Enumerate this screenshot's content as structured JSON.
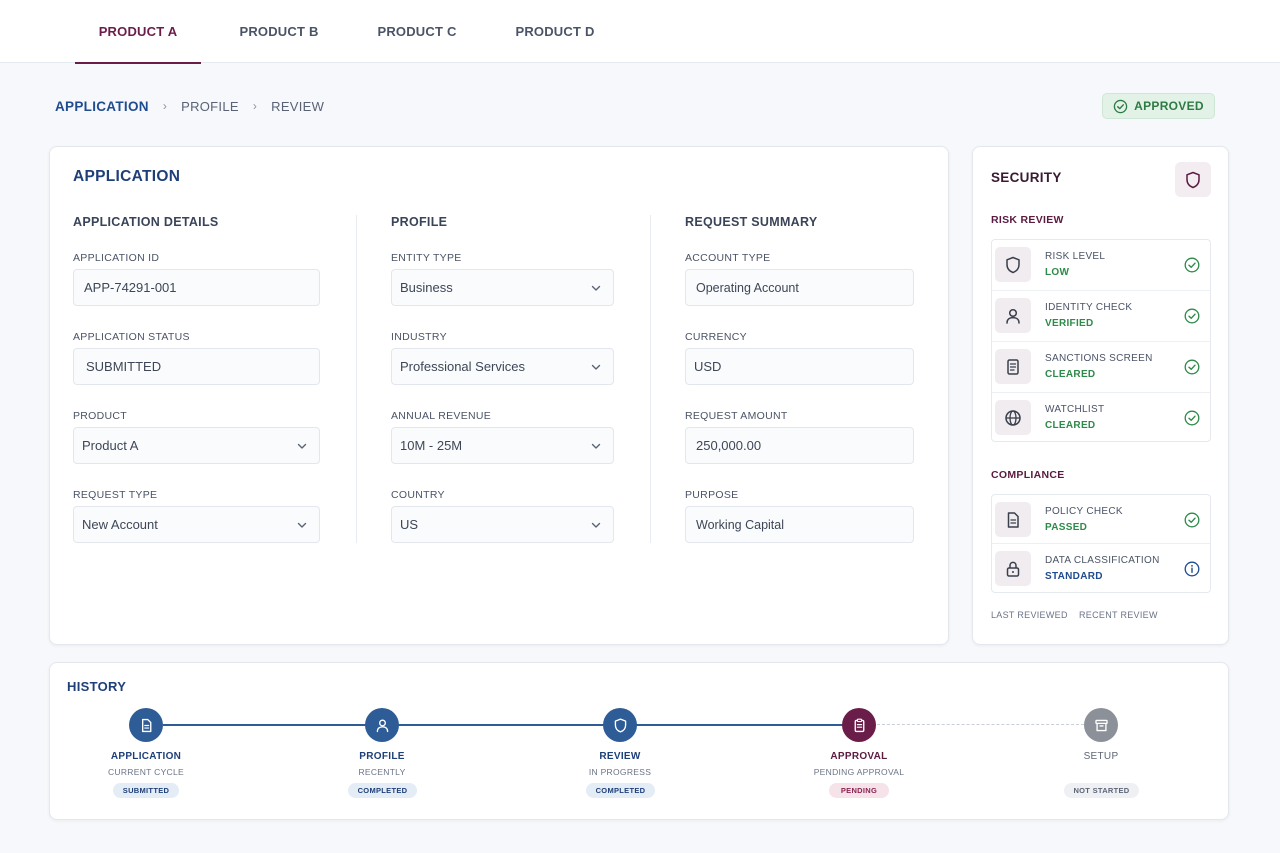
{
  "tabs": [
    {
      "label": "PRODUCT A",
      "active": true
    },
    {
      "label": "PRODUCT B",
      "active": false
    },
    {
      "label": "PRODUCT C",
      "active": false
    },
    {
      "label": "PRODUCT D",
      "active": false
    }
  ],
  "breadcrumb": [
    "APPLICATION",
    "PROFILE",
    "REVIEW"
  ],
  "status_badge": {
    "label": "APPROVED",
    "icon": "check-circle-icon",
    "color": "#2e7a44"
  },
  "application": {
    "title": "APPLICATION",
    "details": {
      "title": "APPLICATION DETAILS",
      "application_id": {
        "label": "APPLICATION ID",
        "value": "APP-74291-001"
      },
      "application_status": {
        "label": "APPLICATION STATUS",
        "value": "SUBMITTED"
      },
      "product": {
        "label": "PRODUCT",
        "value": "Product A"
      },
      "request_type": {
        "label": "REQUEST TYPE",
        "value": "New Account"
      }
    },
    "profile": {
      "title": "PROFILE",
      "entity_type": {
        "label": "ENTITY TYPE",
        "value": "Business"
      },
      "industry": {
        "label": "INDUSTRY",
        "value": "Professional Services"
      },
      "annual_revenue": {
        "label": "ANNUAL REVENUE",
        "value": "10M - 25M"
      },
      "country": {
        "label": "COUNTRY",
        "value": "US"
      }
    },
    "summary": {
      "title": "REQUEST SUMMARY",
      "account_type": {
        "label": "ACCOUNT TYPE",
        "value": "Operating Account"
      },
      "currency": {
        "label": "CURRENCY",
        "value": "USD"
      },
      "request_amount": {
        "label": "REQUEST AMOUNT",
        "value": "250,000.00"
      },
      "purpose": {
        "label": "PURPOSE",
        "value": "Working Capital"
      }
    }
  },
  "security": {
    "title": "SECURITY",
    "icon": "shield-icon",
    "risk_review": {
      "title": "RISK REVIEW",
      "items": [
        {
          "name": "RISK LEVEL",
          "value": "LOW",
          "icon": "shield-icon",
          "status": "check"
        },
        {
          "name": "IDENTITY CHECK",
          "value": "VERIFIED",
          "icon": "user-icon",
          "status": "check"
        },
        {
          "name": "SANCTIONS SCREEN",
          "value": "CLEARED",
          "icon": "document-icon",
          "status": "check"
        },
        {
          "name": "WATCHLIST",
          "value": "CLEARED",
          "icon": "globe-icon",
          "status": "check"
        }
      ]
    },
    "compliance": {
      "title": "COMPLIANCE",
      "items": [
        {
          "name": "POLICY CHECK",
          "value": "PASSED",
          "icon": "file-icon",
          "status": "check"
        },
        {
          "name": "DATA CLASSIFICATION",
          "value": "STANDARD",
          "icon": "lock-icon",
          "status": "info"
        }
      ]
    },
    "footer": {
      "last_reviewed": "LAST REVIEWED",
      "recent_review": "RECENT REVIEW"
    }
  },
  "history": {
    "title": "HISTORY",
    "steps": [
      {
        "name": "APPLICATION",
        "sub": "CURRENT CYCLE",
        "badge": "SUBMITTED",
        "icon": "document-icon",
        "state": "done"
      },
      {
        "name": "PROFILE",
        "sub": "RECENTLY",
        "badge": "COMPLETED",
        "icon": "user-icon",
        "state": "done"
      },
      {
        "name": "REVIEW",
        "sub": "IN PROGRESS",
        "badge": "COMPLETED",
        "icon": "shield-icon",
        "state": "done"
      },
      {
        "name": "APPROVAL",
        "sub": "PENDING APPROVAL",
        "badge": "PENDING",
        "icon": "clipboard-icon",
        "state": "pending"
      },
      {
        "name": "SETUP",
        "sub": "",
        "badge": "NOT STARTED",
        "icon": "archive-icon",
        "state": "not-started"
      }
    ]
  },
  "colors": {
    "brand": "#6b1d4a",
    "primary": "#1f3f78",
    "success": "#2e8a4a",
    "step_done": "#2e5c96",
    "step_pending": "#6b1d4a",
    "step_idle": "#8c9099"
  }
}
